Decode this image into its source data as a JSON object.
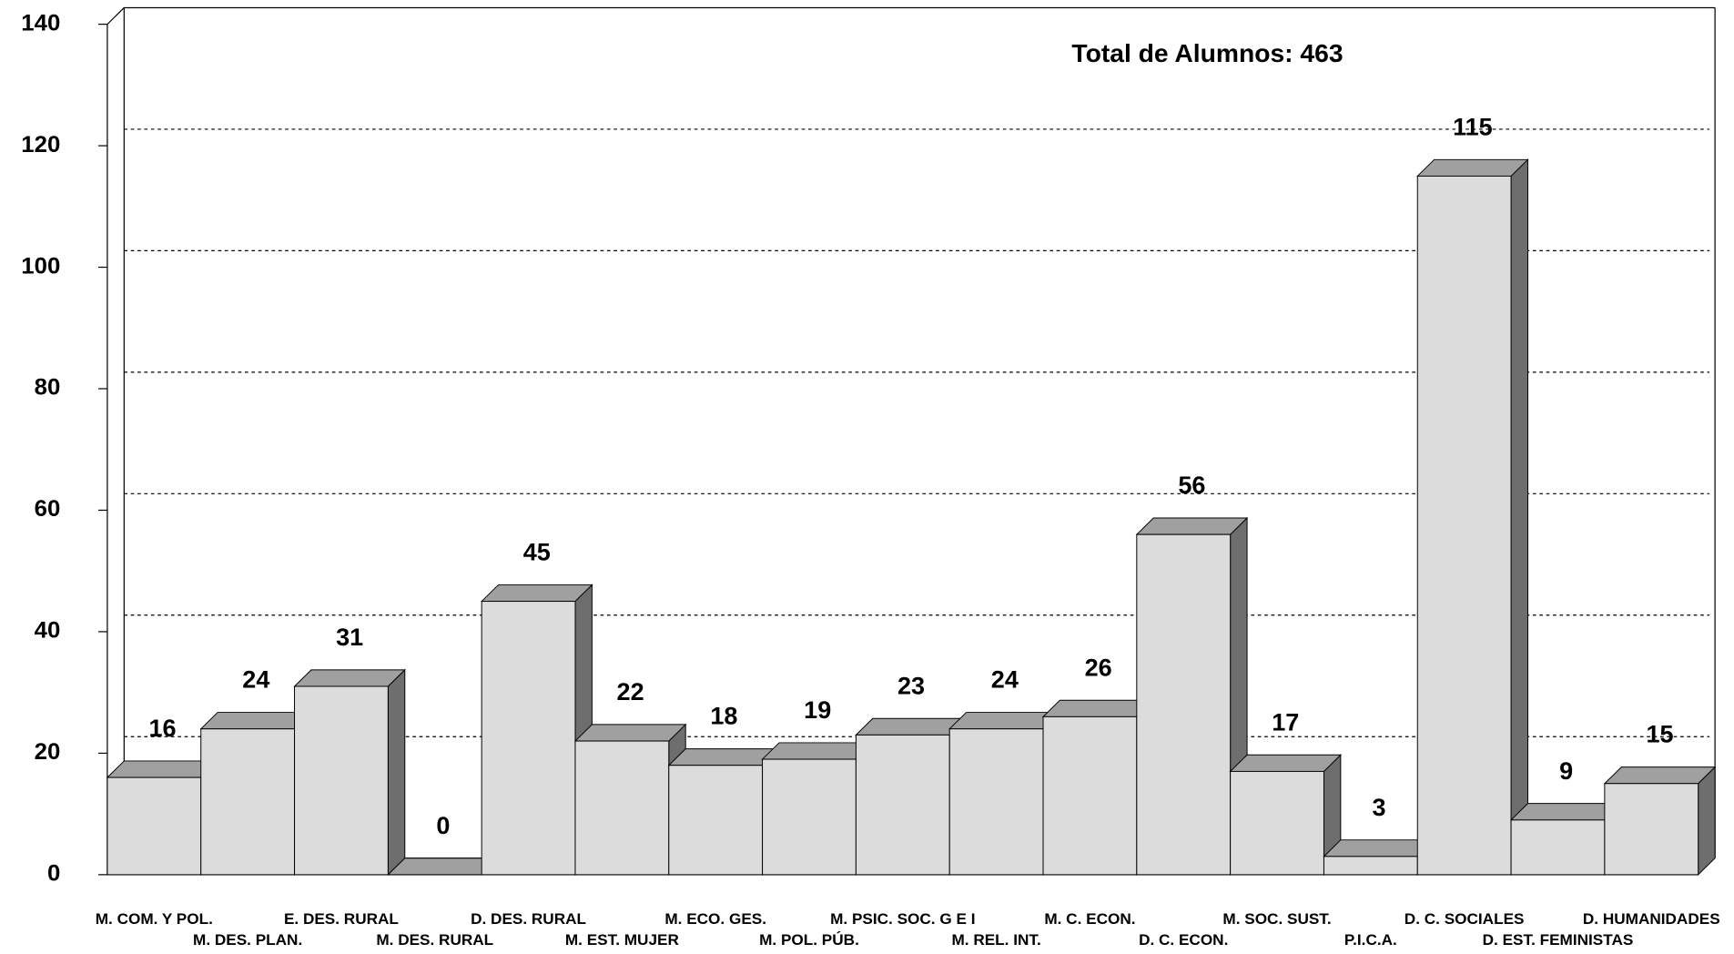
{
  "chart_data": {
    "type": "bar3d",
    "annotation": "Total de Alumnos: 463",
    "categories": [
      "M. COM. Y POL.",
      "M. DES. PLAN.",
      "E. DES. RURAL",
      "M. DES. RURAL",
      "D. DES. RURAL",
      "M. EST. MUJER",
      "M. ECO. GES.",
      "M. POL. PÚB.",
      "M. PSIC. SOC. G E I",
      "M. REL. INT.",
      "M. C. ECON.",
      "D. C. ECON.",
      "M. SOC. SUST.",
      "P.I.C.A.",
      "D. C. SOCIALES",
      "D. EST. FEMINISTAS",
      "D. HUMANIDADES"
    ],
    "values": [
      16,
      24,
      31,
      0,
      45,
      22,
      18,
      19,
      23,
      24,
      26,
      56,
      17,
      3,
      115,
      9,
      15
    ],
    "colors": {
      "front": "#dcdcdc",
      "top": "#a0a0a0",
      "side": "#6e6e6e"
    },
    "ylim": [
      0,
      140
    ],
    "yticks": [
      0,
      20,
      40,
      60,
      80,
      100,
      120,
      140
    ],
    "grid": true
  }
}
